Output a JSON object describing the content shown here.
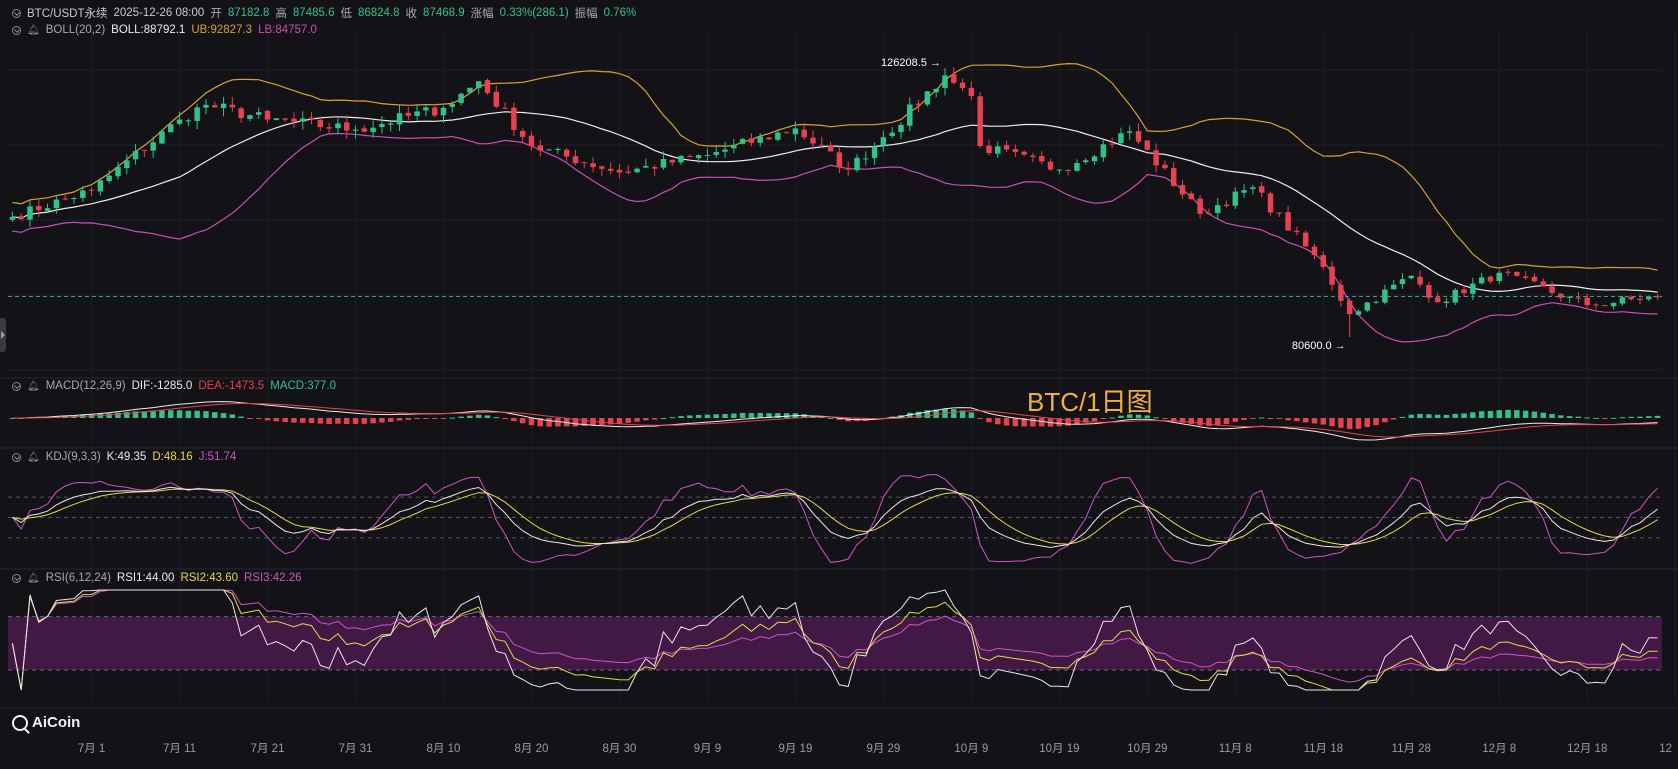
{
  "header": {
    "symbol": "BTC/USDT永续",
    "datetime": "2025-12-26 08:00",
    "open_label": "开",
    "open": "87182.8",
    "high_label": "高",
    "high": "87485.6",
    "low_label": "低",
    "low": "86824.8",
    "close_label": "收",
    "close": "87468.9",
    "change_label": "涨幅",
    "change": "0.33%(286.1)",
    "amplitude_label": "振幅",
    "amplitude": "0.76%"
  },
  "indicators": {
    "boll": {
      "name": "BOLL(20,2)",
      "mid": "BOLL:88792.1",
      "ub": "UB:92827.3",
      "lb": "LB:84757.0"
    },
    "macd": {
      "name": "MACD(12,26,9)",
      "dif": "DIF:-1285.0",
      "dea": "DEA:-1473.5",
      "macd": "MACD:377.0"
    },
    "kdj": {
      "name": "KDJ(9,3,3)",
      "k": "K:49.35",
      "d": "D:48.16",
      "j": "J:51.74"
    },
    "rsi": {
      "name": "RSI(6,12,24)",
      "rsi1": "RSI1:44.00",
      "rsi2": "RSI2:43.60",
      "rsi3": "RSI3:42.26"
    }
  },
  "annotations": {
    "high": "126208.5",
    "low": "80600.0"
  },
  "watermark": "BTC/1日图",
  "logo": "AiCoin",
  "colors": {
    "up": "#2fc28a",
    "down": "#e8414f",
    "ub": "#d7a22b",
    "mid": "#ececec",
    "lb": "#c84fb5",
    "k": "#e8e8e8",
    "d": "#e7d84a",
    "j": "#d053c6",
    "rsi_band": "#4b1a4e",
    "background": "#131317"
  },
  "chart_data": {
    "type": "candlestick",
    "title": "BTC/1日图",
    "x_tick_labels": [
      "7月 1",
      "7月 11",
      "7月 21",
      "7月 31",
      "8月 10",
      "8月 20",
      "8月 30",
      "9月 9",
      "9月 19",
      "9月 29",
      "10月 9",
      "10月 19",
      "10月 29",
      "11月 8",
      "11月 18",
      "11月 28",
      "12月 8",
      "12月 18",
      "12"
    ],
    "x_range": [
      "2025-06-22",
      "2025-12-26"
    ],
    "price_range": [
      75000,
      131000
    ],
    "last_close": 87468.9,
    "price_key_points": [
      {
        "date": "2025-06-22",
        "close": 101000
      },
      {
        "date": "2025-07-01",
        "close": 105500
      },
      {
        "date": "2025-07-11",
        "close": 117500
      },
      {
        "date": "2025-07-14",
        "close": 120000
      },
      {
        "date": "2025-07-21",
        "close": 117500
      },
      {
        "date": "2025-07-31",
        "close": 115800
      },
      {
        "date": "2025-08-10",
        "close": 119500
      },
      {
        "date": "2025-08-14",
        "close": 124000
      },
      {
        "date": "2025-08-20",
        "close": 113000
      },
      {
        "date": "2025-08-30",
        "close": 108500
      },
      {
        "date": "2025-09-09",
        "close": 111500
      },
      {
        "date": "2025-09-19",
        "close": 116000
      },
      {
        "date": "2025-09-25",
        "close": 109000
      },
      {
        "date": "2025-09-29",
        "close": 114500
      },
      {
        "date": "2025-10-06",
        "close": 125000
      },
      {
        "date": "2025-10-09",
        "close": 121500
      },
      {
        "date": "2025-10-10",
        "close": 113000
      },
      {
        "date": "2025-10-19",
        "close": 109000
      },
      {
        "date": "2025-10-27",
        "close": 115500
      },
      {
        "date": "2025-11-04",
        "close": 101500
      },
      {
        "date": "2025-11-10",
        "close": 106000
      },
      {
        "date": "2025-11-18",
        "close": 92500
      },
      {
        "date": "2025-11-21",
        "close": 84500
      },
      {
        "date": "2025-11-28",
        "close": 91000
      },
      {
        "date": "2025-12-01",
        "close": 86500
      },
      {
        "date": "2025-12-08",
        "close": 91500
      },
      {
        "date": "2025-12-18",
        "close": 86000
      },
      {
        "date": "2025-12-26",
        "close": 87468.9
      }
    ],
    "max_annotation": {
      "date": "2025-10-06",
      "price": 126208.5
    },
    "min_annotation": {
      "date": "2025-11-21",
      "price": 80600.0
    },
    "boll_latest": {
      "mid": 88792.1,
      "ub": 92827.3,
      "lb": 84757.0
    },
    "macd_latest": {
      "dif": -1285.0,
      "dea": -1473.5,
      "macd": 377.0
    },
    "kdj_latest": {
      "k": 49.35,
      "d": 48.16,
      "j": 51.74
    },
    "rsi_latest": {
      "rsi1": 44.0,
      "rsi2": 43.6,
      "rsi3": 42.26
    },
    "kdj_guides": [
      80,
      50,
      20
    ],
    "rsi_guides": [
      70,
      30
    ]
  }
}
